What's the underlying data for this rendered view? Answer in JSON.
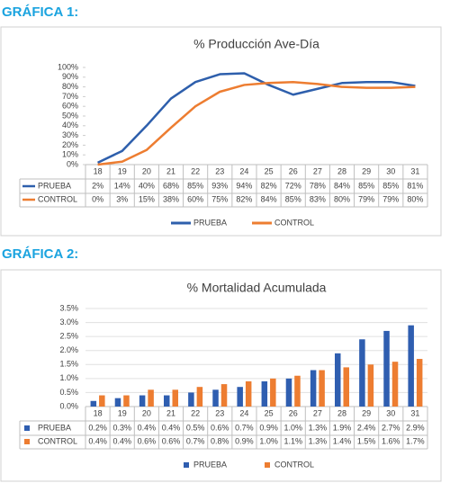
{
  "headings": [
    "GRÁFICA 1:",
    "GRÁFICA 2:"
  ],
  "chart_data": [
    {
      "type": "line",
      "title": "% Producción Ave-Día",
      "categories": [
        "18",
        "19",
        "20",
        "21",
        "22",
        "23",
        "24",
        "25",
        "26",
        "27",
        "28",
        "29",
        "30",
        "31"
      ],
      "series": [
        {
          "name": "PRUEBA",
          "color": "#2e5fac",
          "values": [
            2,
            14,
            40,
            68,
            85,
            93,
            94,
            82,
            72,
            78,
            84,
            85,
            85,
            81
          ],
          "value_labels": [
            "2%",
            "14%",
            "40%",
            "68%",
            "85%",
            "93%",
            "94%",
            "82%",
            "72%",
            "78%",
            "84%",
            "85%",
            "85%",
            "81%"
          ]
        },
        {
          "name": "CONTROL",
          "color": "#ed7d31",
          "values": [
            0,
            3,
            15,
            38,
            60,
            75,
            82,
            84,
            85,
            83,
            80,
            79,
            79,
            80
          ],
          "value_labels": [
            "0%",
            "3%",
            "15%",
            "38%",
            "60%",
            "75%",
            "82%",
            "84%",
            "85%",
            "83%",
            "80%",
            "79%",
            "79%",
            "80%"
          ]
        }
      ],
      "ylim": [
        0,
        100
      ],
      "yticks": [
        {
          "value": 0,
          "label": "0%"
        },
        {
          "value": 10,
          "label": "10%"
        },
        {
          "value": 20,
          "label": "20%"
        },
        {
          "value": 30,
          "label": "30%"
        },
        {
          "value": 40,
          "label": "40%"
        },
        {
          "value": 50,
          "label": "50%"
        },
        {
          "value": 60,
          "label": "60%"
        },
        {
          "value": 70,
          "label": "70%"
        },
        {
          "value": 80,
          "label": "80%"
        },
        {
          "value": 90,
          "label": "90%"
        },
        {
          "value": 100,
          "label": "100%"
        }
      ],
      "grid": false
    },
    {
      "type": "bar",
      "title": "% Mortalidad Acumulada",
      "categories": [
        "18",
        "19",
        "20",
        "21",
        "22",
        "23",
        "24",
        "25",
        "26",
        "27",
        "28",
        "29",
        "30",
        "31"
      ],
      "series": [
        {
          "name": "PRUEBA",
          "color": "#2f5eb0",
          "values": [
            0.2,
            0.3,
            0.4,
            0.4,
            0.5,
            0.6,
            0.7,
            0.9,
            1.0,
            1.3,
            1.9,
            2.4,
            2.7,
            2.9
          ],
          "value_labels": [
            "0.2%",
            "0.3%",
            "0.4%",
            "0.4%",
            "0.5%",
            "0.6%",
            "0.7%",
            "0.9%",
            "1.0%",
            "1.3%",
            "1.9%",
            "2.4%",
            "2.7%",
            "2.9%"
          ]
        },
        {
          "name": "CONTROL",
          "color": "#ed7d31",
          "values": [
            0.4,
            0.4,
            0.6,
            0.6,
            0.7,
            0.8,
            0.9,
            1.0,
            1.1,
            1.3,
            1.4,
            1.5,
            1.6,
            1.7
          ],
          "value_labels": [
            "0.4%",
            "0.4%",
            "0.6%",
            "0.6%",
            "0.7%",
            "0.8%",
            "0.9%",
            "1.0%",
            "1.1%",
            "1.3%",
            "1.4%",
            "1.5%",
            "1.6%",
            "1.7%"
          ]
        }
      ],
      "ylim": [
        0,
        3.5
      ],
      "yticks": [
        {
          "value": 0,
          "label": "0.0%"
        },
        {
          "value": 0.5,
          "label": "0.5%"
        },
        {
          "value": 1,
          "label": "1.0%"
        },
        {
          "value": 1.5,
          "label": "1.5%"
        },
        {
          "value": 2,
          "label": "2.0%"
        },
        {
          "value": 2.5,
          "label": "2.5%"
        },
        {
          "value": 3,
          "label": "3.0%"
        },
        {
          "value": 3.5,
          "label": "3.5%"
        }
      ],
      "grid": true
    }
  ]
}
